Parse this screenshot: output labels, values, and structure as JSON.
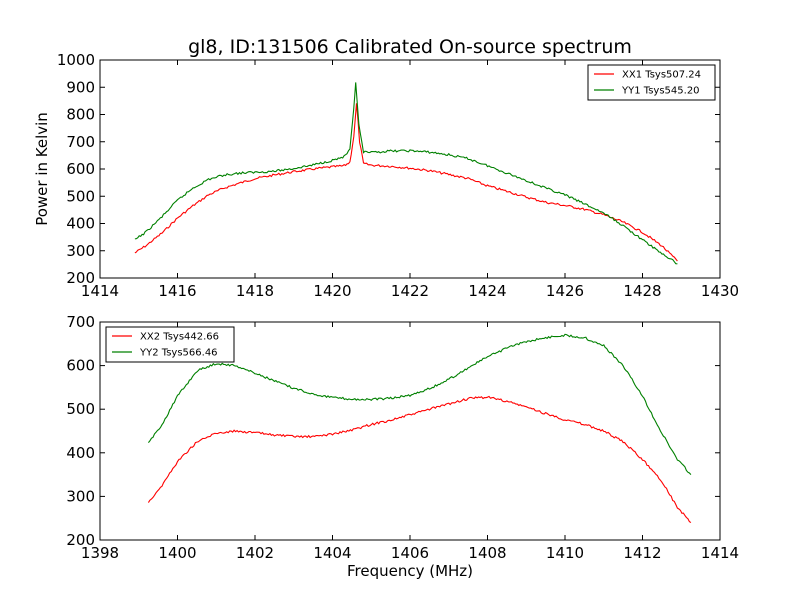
{
  "chart_data": [
    {
      "type": "line",
      "title": "gl8, ID:131506 Calibrated On-source spectrum",
      "xlabel": "",
      "ylabel": "Power in Kelvin",
      "xlim": [
        1414,
        1430
      ],
      "ylim": [
        200,
        1000
      ],
      "xticks": [
        1414,
        1416,
        1418,
        1420,
        1422,
        1424,
        1426,
        1428,
        1430
      ],
      "yticks": [
        200,
        300,
        400,
        500,
        600,
        700,
        800,
        900,
        1000
      ],
      "grid": false,
      "legend_position": "top-right",
      "series": [
        {
          "name": "XX1 Tsys507.24",
          "color": "#ff0000",
          "points": [
            [
              1414.9,
              292
            ],
            [
              1415.2,
              320
            ],
            [
              1415.6,
              365
            ],
            [
              1416.0,
              420
            ],
            [
              1416.4,
              465
            ],
            [
              1416.8,
              505
            ],
            [
              1417.2,
              530
            ],
            [
              1417.6,
              548
            ],
            [
              1418.0,
              565
            ],
            [
              1418.5,
              578
            ],
            [
              1419.0,
              590
            ],
            [
              1419.5,
              600
            ],
            [
              1420.0,
              608
            ],
            [
              1420.3,
              612
            ],
            [
              1420.45,
              625
            ],
            [
              1420.55,
              720
            ],
            [
              1420.62,
              840
            ],
            [
              1420.7,
              700
            ],
            [
              1420.8,
              620
            ],
            [
              1421.0,
              614
            ],
            [
              1421.5,
              610
            ],
            [
              1422.0,
              603
            ],
            [
              1422.5,
              594
            ],
            [
              1423.0,
              580
            ],
            [
              1423.5,
              565
            ],
            [
              1424.0,
              538
            ],
            [
              1424.5,
              518
            ],
            [
              1425.0,
              497
            ],
            [
              1425.5,
              478
            ],
            [
              1426.0,
              466
            ],
            [
              1426.5,
              452
            ],
            [
              1427.0,
              432
            ],
            [
              1427.5,
              405
            ],
            [
              1428.0,
              368
            ],
            [
              1428.5,
              318
            ],
            [
              1428.9,
              262
            ]
          ]
        },
        {
          "name": "YY1 Tsys545.20",
          "color": "#008000",
          "points": [
            [
              1414.9,
              340
            ],
            [
              1415.2,
              370
            ],
            [
              1415.6,
              425
            ],
            [
              1416.0,
              485
            ],
            [
              1416.4,
              530
            ],
            [
              1416.8,
              562
            ],
            [
              1417.2,
              578
            ],
            [
              1417.6,
              585
            ],
            [
              1418.0,
              588
            ],
            [
              1418.5,
              592
            ],
            [
              1419.0,
              602
            ],
            [
              1419.5,
              615
            ],
            [
              1420.0,
              632
            ],
            [
              1420.3,
              645
            ],
            [
              1420.45,
              670
            ],
            [
              1420.55,
              820
            ],
            [
              1420.6,
              920
            ],
            [
              1420.68,
              760
            ],
            [
              1420.8,
              662
            ],
            [
              1421.0,
              660
            ],
            [
              1421.5,
              666
            ],
            [
              1422.0,
              667
            ],
            [
              1422.5,
              662
            ],
            [
              1423.0,
              652
            ],
            [
              1423.5,
              638
            ],
            [
              1424.0,
              612
            ],
            [
              1424.5,
              585
            ],
            [
              1425.0,
              558
            ],
            [
              1425.5,
              530
            ],
            [
              1426.0,
              505
            ],
            [
              1426.5,
              472
            ],
            [
              1427.0,
              438
            ],
            [
              1427.5,
              392
            ],
            [
              1428.0,
              340
            ],
            [
              1428.5,
              290
            ],
            [
              1428.9,
              252
            ]
          ]
        }
      ]
    },
    {
      "type": "line",
      "title": "",
      "xlabel": "Frequency (MHz)",
      "ylabel": "",
      "xlim": [
        1398,
        1414
      ],
      "ylim": [
        200,
        700
      ],
      "xticks": [
        1398,
        1400,
        1402,
        1404,
        1406,
        1408,
        1410,
        1412,
        1414
      ],
      "yticks": [
        200,
        300,
        400,
        500,
        600,
        700
      ],
      "grid": false,
      "legend_position": "top-left",
      "series": [
        {
          "name": "XX2 Tsys442.66",
          "color": "#ff0000",
          "points": [
            [
              1399.25,
              287
            ],
            [
              1399.6,
              325
            ],
            [
              1400.0,
              380
            ],
            [
              1400.5,
              425
            ],
            [
              1401.0,
              445
            ],
            [
              1401.5,
              450
            ],
            [
              1402.0,
              446
            ],
            [
              1402.5,
              441
            ],
            [
              1403.0,
              437
            ],
            [
              1403.5,
              437
            ],
            [
              1404.0,
              443
            ],
            [
              1404.5,
              452
            ],
            [
              1405.0,
              465
            ],
            [
              1405.5,
              475
            ],
            [
              1406.0,
              487
            ],
            [
              1406.5,
              500
            ],
            [
              1407.0,
              512
            ],
            [
              1407.5,
              524
            ],
            [
              1408.0,
              528
            ],
            [
              1408.5,
              518
            ],
            [
              1409.0,
              505
            ],
            [
              1409.5,
              490
            ],
            [
              1410.0,
              476
            ],
            [
              1410.5,
              465
            ],
            [
              1411.0,
              450
            ],
            [
              1411.5,
              425
            ],
            [
              1412.0,
              385
            ],
            [
              1412.5,
              335
            ],
            [
              1412.9,
              275
            ],
            [
              1413.25,
              240
            ]
          ]
        },
        {
          "name": "YY2 Tsys566.46",
          "color": "#008000",
          "points": [
            [
              1399.25,
              422
            ],
            [
              1399.6,
              465
            ],
            [
              1400.0,
              530
            ],
            [
              1400.5,
              588
            ],
            [
              1401.0,
              605
            ],
            [
              1401.5,
              600
            ],
            [
              1402.0,
              583
            ],
            [
              1402.5,
              565
            ],
            [
              1403.0,
              548
            ],
            [
              1403.5,
              535
            ],
            [
              1404.0,
              527
            ],
            [
              1404.5,
              523
            ],
            [
              1405.0,
              522
            ],
            [
              1405.5,
              525
            ],
            [
              1406.0,
              532
            ],
            [
              1406.5,
              547
            ],
            [
              1407.0,
              568
            ],
            [
              1407.5,
              595
            ],
            [
              1408.0,
              620
            ],
            [
              1408.5,
              640
            ],
            [
              1409.0,
              655
            ],
            [
              1409.5,
              664
            ],
            [
              1410.0,
              670
            ],
            [
              1410.5,
              664
            ],
            [
              1411.0,
              645
            ],
            [
              1411.5,
              600
            ],
            [
              1412.0,
              530
            ],
            [
              1412.5,
              445
            ],
            [
              1412.9,
              385
            ],
            [
              1413.25,
              350
            ]
          ]
        }
      ]
    }
  ]
}
